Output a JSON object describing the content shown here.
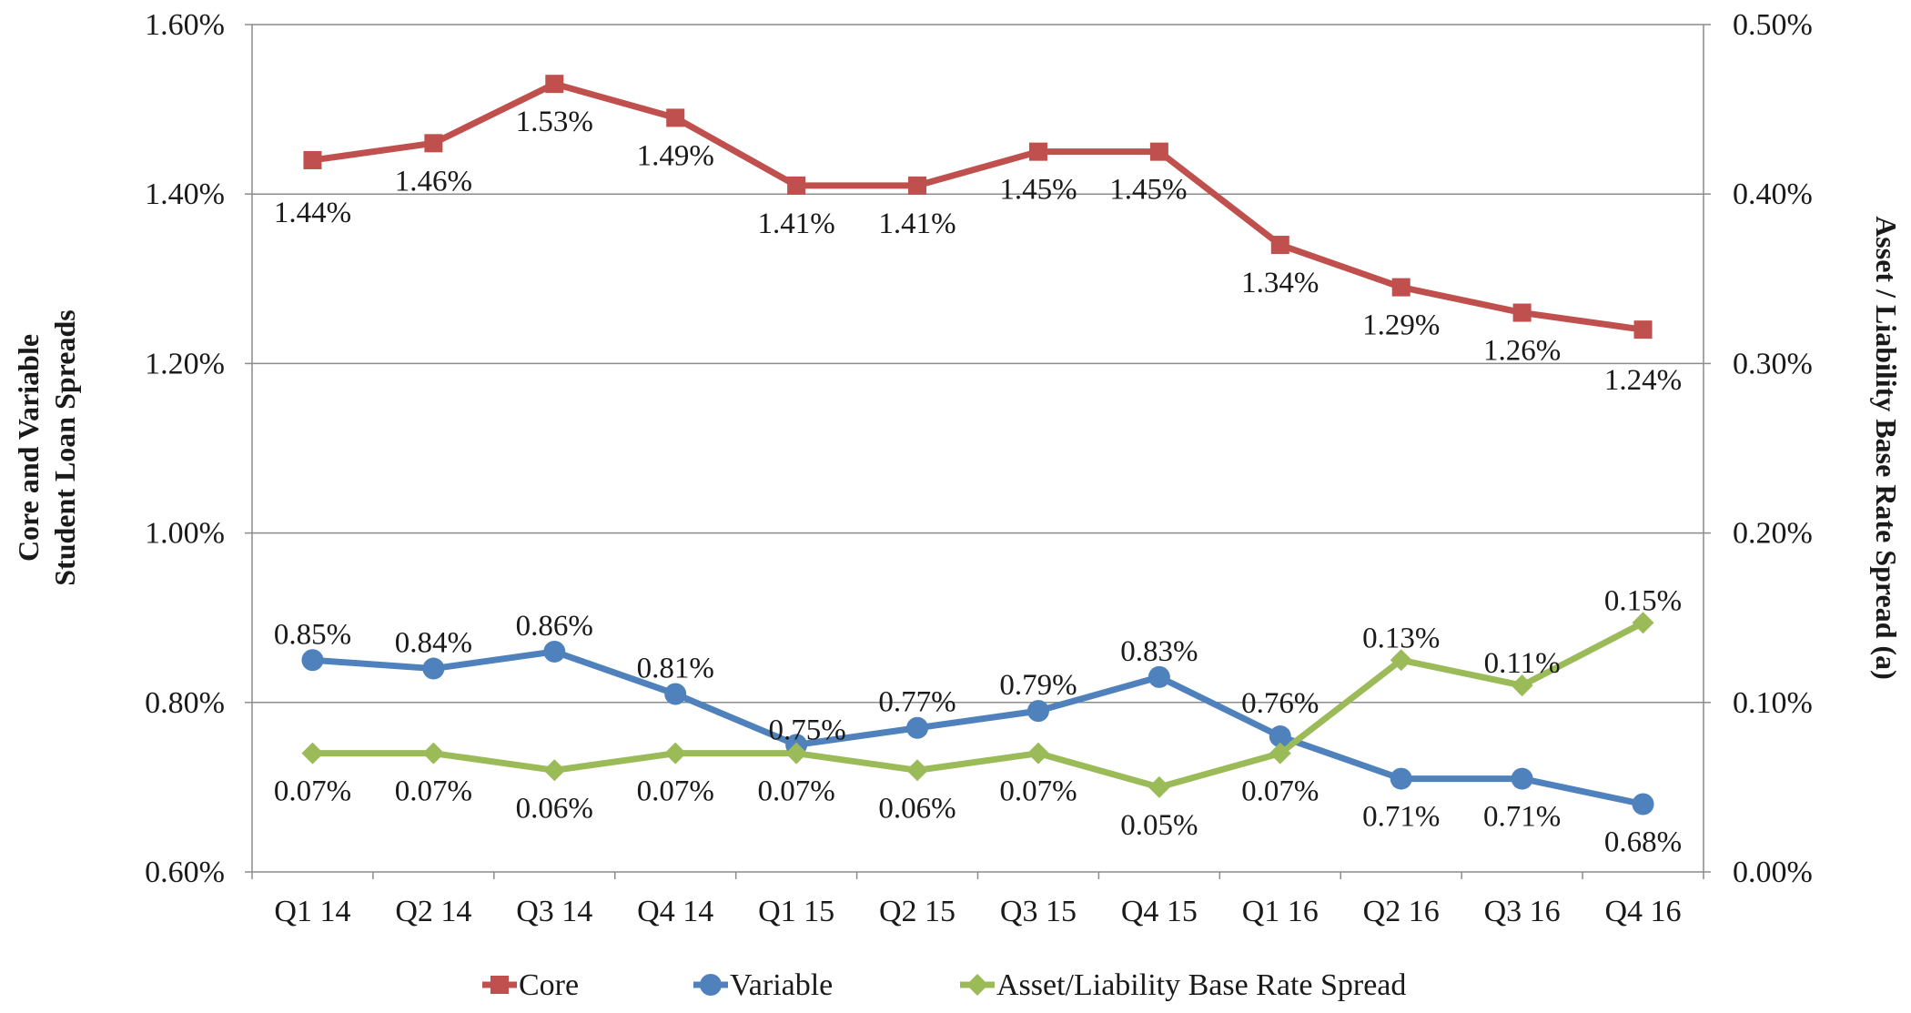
{
  "chart_data": {
    "type": "line",
    "categories": [
      "Q1 14",
      "Q2 14",
      "Q3 14",
      "Q4 14",
      "Q1 15",
      "Q2 15",
      "Q3 15",
      "Q4 15",
      "Q1 16",
      "Q2 16",
      "Q3 16",
      "Q4 16"
    ],
    "series": [
      {
        "name": "Core",
        "axis": "left",
        "color": "#c0504d",
        "marker": "square",
        "values": [
          1.44,
          1.46,
          1.53,
          1.49,
          1.41,
          1.41,
          1.45,
          1.45,
          1.34,
          1.29,
          1.26,
          1.24
        ],
        "labels": [
          "1.44%",
          "1.46%",
          "1.53%",
          "1.49%",
          "1.41%",
          "1.41%",
          "1.45%",
          "1.45%",
          "1.34%",
          "1.29%",
          "1.26%",
          "1.24%"
        ]
      },
      {
        "name": "Variable",
        "axis": "left",
        "color": "#4f81bd",
        "marker": "circle",
        "values": [
          0.85,
          0.84,
          0.86,
          0.81,
          0.75,
          0.77,
          0.79,
          0.83,
          0.76,
          0.71,
          0.71,
          0.68
        ],
        "labels": [
          "0.85%",
          "0.84%",
          "0.86%",
          "0.81%",
          "0.75%",
          "0.77%",
          "0.79%",
          "0.83%",
          "0.76%",
          "0.71%",
          "0.71%",
          "0.68%"
        ]
      },
      {
        "name": "Asset/Liability Base Rate Spread",
        "axis": "right",
        "color": "#9bbb59",
        "marker": "diamond",
        "values": [
          0.07,
          0.07,
          0.06,
          0.07,
          0.07,
          0.06,
          0.07,
          0.05,
          0.07,
          0.125,
          0.11,
          0.147
        ],
        "labels": [
          "0.07%",
          "0.07%",
          "0.06%",
          "0.07%",
          "0.07%",
          "0.06%",
          "0.07%",
          "0.05%",
          "0.07%",
          "0.13%",
          "0.11%",
          "0.15%"
        ]
      }
    ],
    "y_left": {
      "title_lines": [
        "Core and Variable",
        "Student Loan Spreads"
      ],
      "ylim": [
        0.6,
        1.6
      ],
      "ticks": [
        0.6,
        0.8,
        1.0,
        1.2,
        1.4,
        1.6
      ],
      "tick_labels": [
        "0.60%",
        "0.80%",
        "1.00%",
        "1.20%",
        "1.40%",
        "1.60%"
      ]
    },
    "y_right": {
      "title": "Asset / Liability Base Rate Spread (a)",
      "ylim": [
        0.0,
        0.5
      ],
      "ticks": [
        0.0,
        0.1,
        0.2,
        0.3,
        0.4,
        0.5
      ],
      "tick_labels": [
        "0.00%",
        "0.10%",
        "0.20%",
        "0.30%",
        "0.40%",
        "0.50%"
      ]
    },
    "grid": true,
    "legend_position": "bottom"
  }
}
